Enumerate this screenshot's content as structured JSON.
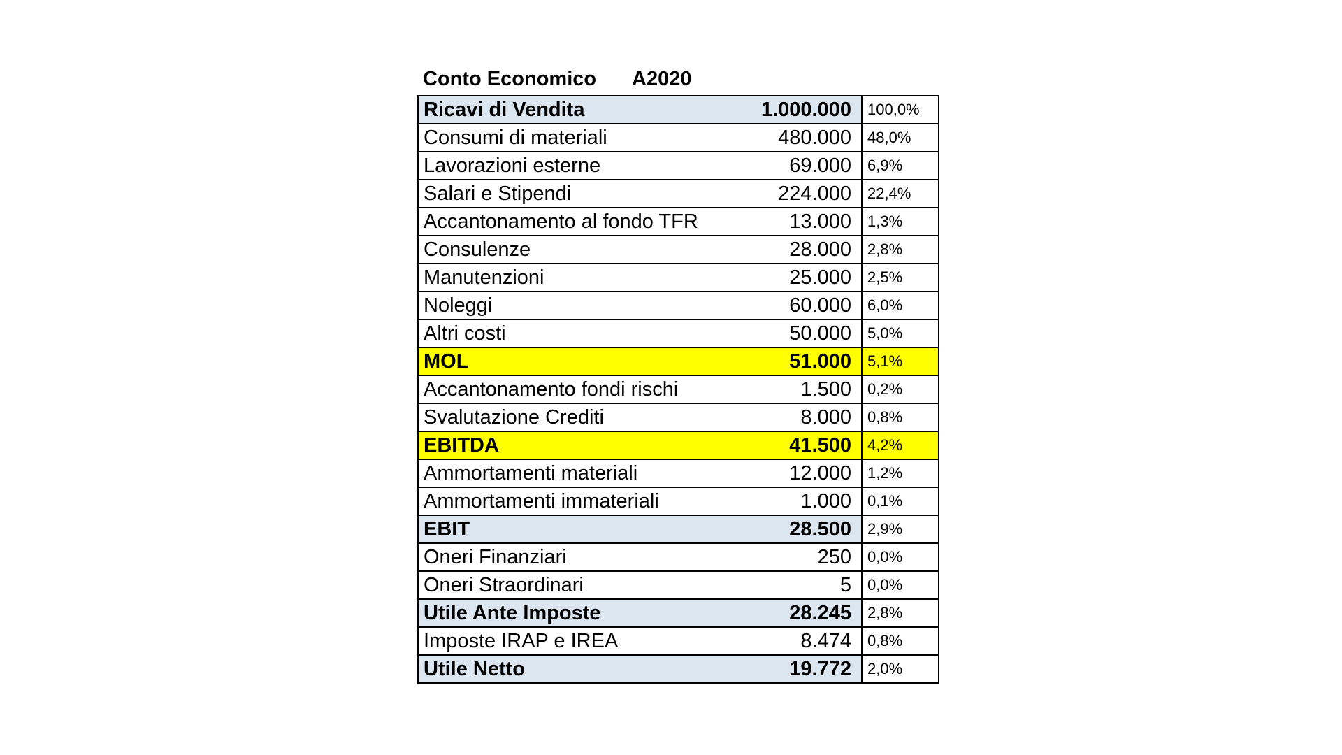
{
  "header": {
    "title": "Conto Economico",
    "year_label": "A2020"
  },
  "theme": {
    "highlight_blue": "#dce6f1",
    "highlight_yellow": "#ffff00",
    "border_color": "#000000",
    "text_color": "#000000",
    "page_background": "#ffffff"
  },
  "rows": [
    {
      "label": "Ricavi di Vendita",
      "value": "1.000.000",
      "pct": "100,0%",
      "style": "blue"
    },
    {
      "label": "Consumi di materiali",
      "value": "480.000",
      "pct": "48,0%",
      "style": "plain"
    },
    {
      "label": "Lavorazioni esterne",
      "value": "69.000",
      "pct": "6,9%",
      "style": "plain"
    },
    {
      "label": "Salari e Stipendi",
      "value": "224.000",
      "pct": "22,4%",
      "style": "plain"
    },
    {
      "label": "Accantonamento al fondo TFR",
      "value": "13.000",
      "pct": "1,3%",
      "style": "plain"
    },
    {
      "label": "Consulenze",
      "value": "28.000",
      "pct": "2,8%",
      "style": "plain"
    },
    {
      "label": "Manutenzioni",
      "value": "25.000",
      "pct": "2,5%",
      "style": "plain"
    },
    {
      "label": "Noleggi",
      "value": "60.000",
      "pct": "6,0%",
      "style": "plain"
    },
    {
      "label": "Altri costi",
      "value": "50.000",
      "pct": "5,0%",
      "style": "plain"
    },
    {
      "label": "MOL",
      "value": "51.000",
      "pct": "5,1%",
      "style": "yellow"
    },
    {
      "label": "Accantonamento fondi rischi",
      "value": "1.500",
      "pct": "0,2%",
      "style": "plain"
    },
    {
      "label": "Svalutazione Crediti",
      "value": "8.000",
      "pct": "0,8%",
      "style": "plain"
    },
    {
      "label": "EBITDA",
      "value": "41.500",
      "pct": "4,2%",
      "style": "yellow"
    },
    {
      "label": "Ammortamenti materiali",
      "value": "12.000",
      "pct": "1,2%",
      "style": "plain"
    },
    {
      "label": "Ammortamenti immateriali",
      "value": "1.000",
      "pct": "0,1%",
      "style": "plain"
    },
    {
      "label": "EBIT",
      "value": "28.500",
      "pct": "2,9%",
      "style": "blue"
    },
    {
      "label": "Oneri Finanziari",
      "value": "250",
      "pct": "0,0%",
      "style": "plain"
    },
    {
      "label": "Oneri Straordinari",
      "value": "5",
      "pct": "0,0%",
      "style": "plain"
    },
    {
      "label": "Utile Ante Imposte",
      "value": "28.245",
      "pct": "2,8%",
      "style": "blue"
    },
    {
      "label": "Imposte IRAP e IREA",
      "value": "8.474",
      "pct": "0,8%",
      "style": "plain"
    },
    {
      "label": "Utile Netto",
      "value": "19.772",
      "pct": "2,0%",
      "style": "blue"
    }
  ]
}
